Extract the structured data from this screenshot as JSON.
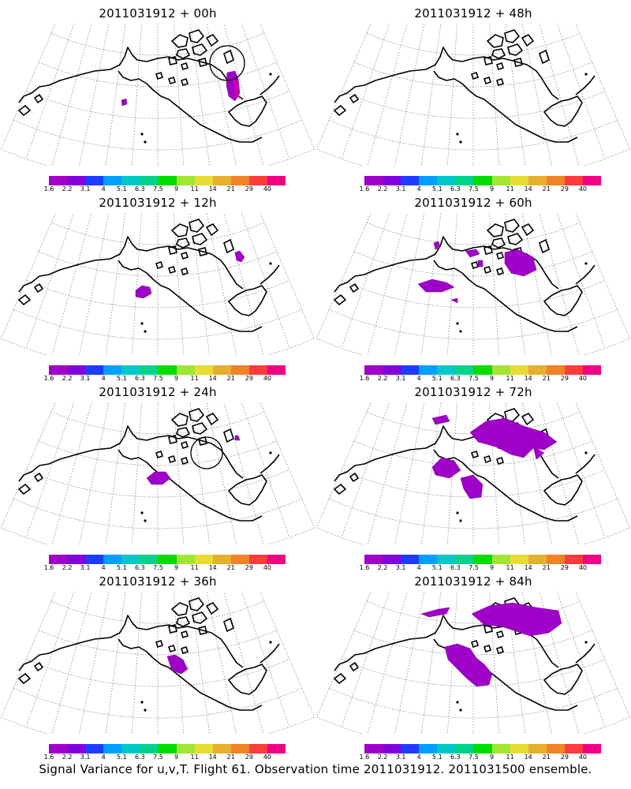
{
  "panels": [
    {
      "title": "2011031912 + 00h",
      "circle": true
    },
    {
      "title": "2011031912 + 48h",
      "circle": false
    },
    {
      "title": "2011031912 + 12h",
      "circle": false
    },
    {
      "title": "2011031912 + 60h",
      "circle": false
    },
    {
      "title": "2011031912 + 24h",
      "circle": true
    },
    {
      "title": "2011031912 + 72h",
      "circle": false
    },
    {
      "title": "2011031912 + 36h",
      "circle": false
    },
    {
      "title": "2011031912 + 84h",
      "circle": false
    }
  ],
  "colorbar": {
    "labels": [
      "1.6",
      "2.2",
      "3.1",
      "4",
      "5.1",
      "6.3",
      "7.5",
      "9",
      "11",
      "14",
      "21",
      "29",
      "40"
    ],
    "colors": [
      "#a000c8",
      "#8200dc",
      "#1e3cff",
      "#00a0ff",
      "#00c8c8",
      "#00d28c",
      "#00dc00",
      "#a0e632",
      "#e6dc32",
      "#e6af2d",
      "#f08228",
      "#fa3c3c",
      "#f00082"
    ]
  },
  "footer": "Signal Variance for u,v,T. Flight 61. Observation time 2011031912. 2011031500 ensemble."
}
